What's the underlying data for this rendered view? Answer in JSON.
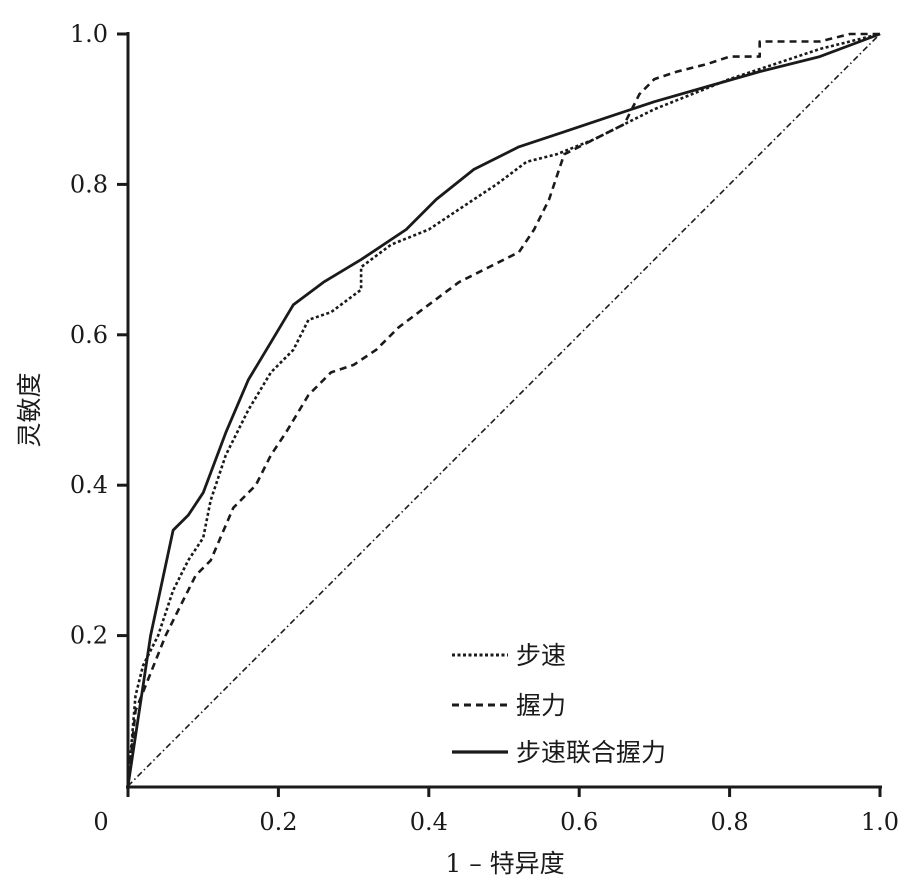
{
  "chart_data": {
    "type": "line",
    "title": "",
    "xlabel": "1 – 特异度",
    "ylabel": "灵敏度",
    "xlim": [
      0,
      1
    ],
    "ylim": [
      0,
      1
    ],
    "x_ticks": [
      "0",
      "0.2",
      "0.4",
      "0.6",
      "0.8",
      "1.0"
    ],
    "y_ticks": [
      "0.2",
      "0.4",
      "0.6",
      "0.8",
      "1.0"
    ],
    "grid": false,
    "legend_position": "bottom-right",
    "reference_line": {
      "x": [
        0,
        1
      ],
      "y": [
        0,
        1
      ],
      "style": "dash-dot"
    },
    "series": [
      {
        "name": "步速",
        "style": "dotted",
        "x": [
          0,
          0.01,
          0.02,
          0.04,
          0.06,
          0.08,
          0.1,
          0.11,
          0.13,
          0.16,
          0.19,
          0.22,
          0.24,
          0.27,
          0.31,
          0.31,
          0.35,
          0.4,
          0.46,
          0.49,
          0.53,
          0.57,
          0.62,
          0.66,
          0.7,
          0.75,
          0.8,
          0.86,
          0.92,
          1.0
        ],
        "y": [
          0,
          0.12,
          0.16,
          0.2,
          0.26,
          0.3,
          0.33,
          0.38,
          0.44,
          0.5,
          0.55,
          0.58,
          0.62,
          0.63,
          0.66,
          0.69,
          0.72,
          0.74,
          0.78,
          0.8,
          0.83,
          0.84,
          0.86,
          0.88,
          0.9,
          0.92,
          0.94,
          0.96,
          0.98,
          1.0
        ]
      },
      {
        "name": "握力",
        "style": "dashed",
        "x": [
          0,
          0.01,
          0.03,
          0.05,
          0.07,
          0.09,
          0.11,
          0.14,
          0.17,
          0.19,
          0.21,
          0.24,
          0.27,
          0.3,
          0.33,
          0.36,
          0.4,
          0.44,
          0.48,
          0.52,
          0.54,
          0.56,
          0.57,
          0.58,
          0.62,
          0.66,
          0.68,
          0.7,
          0.73,
          0.77,
          0.8,
          0.84,
          0.84,
          0.88,
          0.92,
          0.96,
          1.0
        ],
        "y": [
          0,
          0.1,
          0.15,
          0.2,
          0.24,
          0.28,
          0.3,
          0.37,
          0.4,
          0.44,
          0.47,
          0.52,
          0.55,
          0.56,
          0.58,
          0.61,
          0.64,
          0.67,
          0.69,
          0.71,
          0.74,
          0.78,
          0.81,
          0.84,
          0.86,
          0.88,
          0.92,
          0.94,
          0.95,
          0.96,
          0.97,
          0.97,
          0.99,
          0.99,
          0.99,
          1.0,
          1.0
        ]
      },
      {
        "name": "步速联合握力",
        "style": "solid",
        "x": [
          0,
          0.03,
          0.06,
          0.08,
          0.1,
          0.13,
          0.16,
          0.19,
          0.22,
          0.26,
          0.31,
          0.37,
          0.41,
          0.46,
          0.52,
          0.58,
          0.64,
          0.7,
          0.77,
          0.84,
          0.92,
          1.0
        ],
        "y": [
          0,
          0.2,
          0.34,
          0.36,
          0.39,
          0.47,
          0.54,
          0.59,
          0.64,
          0.67,
          0.7,
          0.74,
          0.78,
          0.82,
          0.85,
          0.87,
          0.89,
          0.91,
          0.93,
          0.95,
          0.97,
          1.0
        ]
      }
    ]
  }
}
